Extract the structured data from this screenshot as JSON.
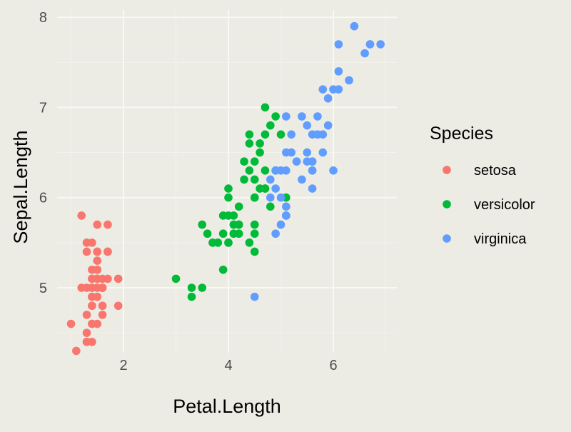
{
  "chart_data": {
    "type": "scatter",
    "title": "",
    "xlabel": "Petal.Length",
    "ylabel": "Sepal.Length",
    "xlim": [
      0.74,
      7.2
    ],
    "ylim": [
      4.15,
      8.05
    ],
    "x_ticks": [
      2,
      4,
      6
    ],
    "y_ticks": [
      5,
      6,
      7,
      8
    ],
    "x_minor": [
      1,
      3,
      5,
      7
    ],
    "y_minor": [
      4.5,
      5.5,
      6.5,
      7.5
    ],
    "grid": true,
    "legend": {
      "title": "Species",
      "placement": "right"
    },
    "series": [
      {
        "name": "setosa",
        "color": "#F8766D",
        "x": [
          1.4,
          1.4,
          1.3,
          1.5,
          1.4,
          1.7,
          1.4,
          1.5,
          1.4,
          1.5,
          1.5,
          1.6,
          1.4,
          1.1,
          1.2,
          1.5,
          1.3,
          1.4,
          1.7,
          1.5,
          1.7,
          1.5,
          1.0,
          1.7,
          1.9,
          1.6,
          1.6,
          1.5,
          1.4,
          1.6,
          1.6,
          1.5,
          1.5,
          1.4,
          1.5,
          1.2,
          1.3,
          1.4,
          1.3,
          1.5,
          1.3,
          1.3,
          1.3,
          1.6,
          1.9,
          1.4,
          1.6,
          1.4,
          1.5,
          1.4
        ],
        "y": [
          5.1,
          4.9,
          4.7,
          4.6,
          5.0,
          5.4,
          4.6,
          5.0,
          4.4,
          4.9,
          5.4,
          4.8,
          4.8,
          4.3,
          5.8,
          5.7,
          5.4,
          5.1,
          5.7,
          5.1,
          5.4,
          5.1,
          4.6,
          5.1,
          4.8,
          5.0,
          5.0,
          5.2,
          5.2,
          4.7,
          4.8,
          5.4,
          5.2,
          5.5,
          4.9,
          5.0,
          5.5,
          4.9,
          4.4,
          5.1,
          5.0,
          4.5,
          4.4,
          5.0,
          5.1,
          4.8,
          5.1,
          4.6,
          5.3,
          5.0
        ]
      },
      {
        "name": "versicolor",
        "color": "#00BA38",
        "x": [
          4.7,
          4.5,
          4.9,
          4.0,
          4.6,
          4.5,
          4.7,
          3.3,
          4.6,
          3.9,
          3.5,
          4.2,
          4.0,
          4.7,
          3.6,
          4.4,
          4.5,
          4.1,
          4.5,
          3.9,
          4.8,
          4.0,
          4.9,
          4.7,
          4.3,
          4.4,
          4.8,
          5.0,
          4.5,
          3.5,
          3.8,
          3.7,
          3.9,
          5.1,
          4.5,
          4.5,
          4.7,
          4.4,
          4.1,
          4.0,
          4.4,
          4.6,
          4.0,
          3.3,
          4.2,
          4.2,
          4.2,
          4.3,
          3.0,
          4.1
        ],
        "y": [
          7.0,
          6.4,
          6.9,
          5.5,
          6.5,
          5.7,
          6.3,
          4.9,
          6.6,
          5.2,
          5.0,
          5.9,
          6.0,
          6.1,
          5.6,
          6.7,
          5.6,
          5.8,
          6.2,
          5.6,
          5.9,
          6.1,
          6.3,
          6.1,
          6.4,
          6.6,
          6.8,
          6.7,
          6.0,
          5.7,
          5.5,
          5.5,
          5.8,
          6.0,
          5.4,
          6.0,
          6.7,
          6.3,
          5.6,
          5.5,
          5.5,
          6.1,
          5.8,
          5.0,
          5.6,
          5.7,
          5.7,
          6.2,
          5.1,
          5.7
        ]
      },
      {
        "name": "virginica",
        "color": "#619CFF",
        "x": [
          6.0,
          5.1,
          5.9,
          5.6,
          5.8,
          6.6,
          4.5,
          6.3,
          5.8,
          6.1,
          5.1,
          5.3,
          5.5,
          5.0,
          5.1,
          5.3,
          5.5,
          6.7,
          6.9,
          5.0,
          5.7,
          4.9,
          6.7,
          4.9,
          5.7,
          6.0,
          4.8,
          4.9,
          5.6,
          5.8,
          6.1,
          6.4,
          5.6,
          5.1,
          5.6,
          6.1,
          5.6,
          5.5,
          4.8,
          5.4,
          5.6,
          5.1,
          5.1,
          5.9,
          5.7,
          5.2,
          5.0,
          5.2,
          5.4,
          5.1
        ],
        "y": [
          6.3,
          5.8,
          7.1,
          6.3,
          6.5,
          7.6,
          4.9,
          7.3,
          6.7,
          7.2,
          6.5,
          6.4,
          6.8,
          5.7,
          5.8,
          6.4,
          6.5,
          7.7,
          7.7,
          6.0,
          6.9,
          5.6,
          7.7,
          6.3,
          6.7,
          7.2,
          6.2,
          6.1,
          6.4,
          7.2,
          7.4,
          7.9,
          6.4,
          6.3,
          6.1,
          7.7,
          6.3,
          6.4,
          6.0,
          6.9,
          6.7,
          6.9,
          5.8,
          6.8,
          6.7,
          6.7,
          6.3,
          6.5,
          6.2,
          5.9
        ]
      }
    ]
  }
}
